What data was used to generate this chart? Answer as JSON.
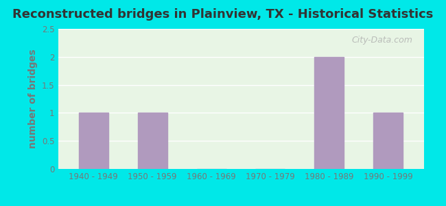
{
  "title": "Reconstructed bridges in Plainview, TX - Historical Statistics",
  "categories": [
    "1940 - 1949",
    "1950 - 1959",
    "1960 - 1969",
    "1970 - 1979",
    "1980 - 1989",
    "1990 - 1999"
  ],
  "values": [
    1,
    1,
    0,
    0,
    2,
    1
  ],
  "bar_color": "#b09abe",
  "ylabel": "number of bridges",
  "ylim": [
    0,
    2.5
  ],
  "yticks": [
    0,
    0.5,
    1,
    1.5,
    2,
    2.5
  ],
  "background_outer": "#00e8e8",
  "background_inner_top": "#f0faf0",
  "background_inner_bottom": "#e8f5e5",
  "title_fontsize": 13,
  "axis_label_fontsize": 10,
  "tick_fontsize": 8.5,
  "grid_color": "#ffffff",
  "ylabel_color": "#777777",
  "tick_color": "#777777",
  "title_color": "#333333",
  "watermark_text": "City-Data.com"
}
